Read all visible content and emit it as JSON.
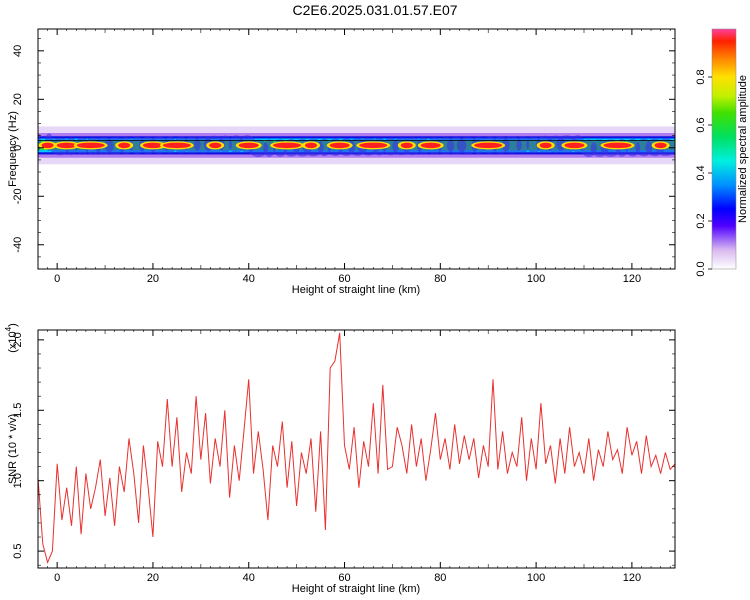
{
  "title": "C2E6.2025.031.01.57.E07",
  "chart_data": [
    {
      "type": "heatmap",
      "xlabel": "Height of straight line (km)",
      "ylabel": "Frequency (Hz)",
      "xlim": [
        -4,
        129
      ],
      "ylim": [
        -50,
        49
      ],
      "x_ticks": [
        0,
        20,
        40,
        60,
        80,
        100,
        120
      ],
      "y_ticks": [
        -40,
        -20,
        0,
        20,
        40
      ],
      "band_center_hz": 1,
      "band_halfwidth_hz": 3,
      "hot_x_km": [
        -2,
        2,
        7,
        14,
        20,
        25,
        33,
        40,
        48,
        53,
        59,
        66,
        73,
        78,
        90,
        102,
        108,
        117,
        126
      ],
      "colorbar": {
        "label": "Normalized spectral amplitude",
        "ticks": [
          "0.0",
          "0.2",
          "0.4",
          "0.6",
          "0.8"
        ],
        "range": [
          0,
          1
        ]
      }
    },
    {
      "type": "line",
      "xlabel": "Height of straight line (km)",
      "ylabel": "SNR (10 * v/v)",
      "multiplier": "(x10",
      "multiplier_exp": "4",
      "xlim": [
        -4,
        129
      ],
      "ylim": [
        0.38,
        2.07
      ],
      "x_ticks": [
        0,
        20,
        40,
        60,
        80,
        100,
        120
      ],
      "y_ticks": [
        "0.5",
        "1.0",
        "1.5",
        "2.0"
      ],
      "color": "#e8312f",
      "series": [
        {
          "x": [
            -4,
            -3,
            -2,
            -1,
            0,
            1,
            2,
            3,
            4,
            5,
            6,
            7,
            8,
            9,
            10,
            11,
            12,
            13,
            14,
            15,
            16,
            17,
            18,
            19,
            20,
            21,
            22,
            23,
            24,
            25,
            26,
            27,
            28,
            29,
            30,
            31,
            32,
            33,
            34,
            35,
            36,
            37,
            38,
            39,
            40,
            41,
            42,
            43,
            44,
            45,
            46,
            47,
            48,
            49,
            50,
            51,
            52,
            53,
            54,
            55,
            56,
            57,
            58,
            59,
            60,
            61,
            62,
            63,
            64,
            65,
            66,
            67,
            68,
            69,
            70,
            71,
            72,
            73,
            74,
            75,
            76,
            77,
            78,
            79,
            80,
            81,
            82,
            83,
            84,
            85,
            86,
            87,
            88,
            89,
            90,
            91,
            92,
            93,
            94,
            95,
            96,
            97,
            98,
            99,
            100,
            101,
            102,
            103,
            104,
            105,
            106,
            107,
            108,
            109,
            110,
            111,
            112,
            113,
            114,
            115,
            116,
            117,
            118,
            119,
            120,
            121,
            122,
            123,
            124,
            125,
            126,
            127,
            128,
            129
          ],
          "y": [
            1.02,
            0.55,
            0.42,
            0.5,
            1.12,
            0.72,
            0.95,
            0.68,
            1.1,
            0.62,
            1.05,
            0.8,
            0.95,
            1.15,
            0.75,
            1.02,
            0.68,
            1.1,
            0.92,
            1.3,
            1.05,
            0.7,
            1.25,
            0.95,
            0.6,
            1.28,
            1.1,
            1.58,
            1.1,
            1.45,
            0.92,
            1.2,
            1.05,
            1.6,
            1.15,
            1.48,
            0.98,
            1.3,
            1.1,
            1.5,
            0.88,
            1.25,
            1.0,
            1.35,
            1.72,
            1.05,
            1.35,
            1.08,
            0.72,
            1.25,
            1.1,
            1.42,
            0.95,
            1.28,
            0.82,
            1.2,
            1.05,
            1.3,
            0.78,
            1.35,
            0.65,
            1.8,
            1.85,
            2.05,
            1.25,
            1.08,
            1.38,
            0.95,
            1.28,
            1.1,
            1.55,
            1.05,
            1.68,
            1.08,
            1.1,
            1.38,
            1.25,
            1.05,
            1.4,
            1.1,
            1.3,
            1.0,
            1.22,
            1.48,
            1.15,
            1.3,
            1.08,
            1.4,
            1.12,
            1.32,
            1.15,
            1.3,
            1.02,
            1.25,
            1.1,
            1.72,
            1.08,
            1.35,
            1.05,
            1.2,
            1.1,
            1.45,
            1.0,
            1.3,
            1.08,
            1.55,
            1.12,
            1.25,
            0.98,
            1.3,
            1.05,
            1.38,
            1.1,
            1.2,
            1.05,
            1.3,
            1.0,
            1.22,
            1.1,
            1.35,
            1.15,
            1.22,
            1.05,
            1.38,
            1.18,
            1.28,
            1.05,
            1.32,
            1.1,
            1.18,
            1.05,
            1.2,
            1.08,
            1.12
          ]
        }
      ]
    }
  ]
}
